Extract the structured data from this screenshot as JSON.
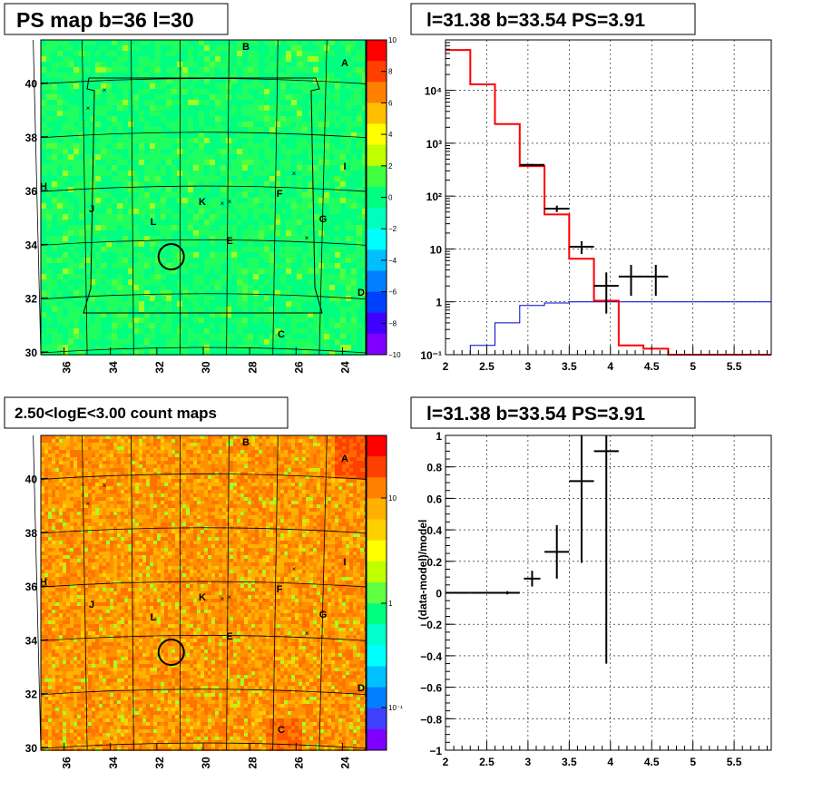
{
  "panels": {
    "top_left": {
      "title": "PS map b=36 l=30"
    },
    "top_right": {
      "title": "l=31.38 b=33.54 PS=3.91"
    },
    "bottom_left": {
      "title": "2.50<logE<3.00 count maps"
    },
    "bottom_right": {
      "title": "l=31.38 b=33.54 PS=3.91"
    }
  },
  "chart_data": [
    {
      "id": "ps_map",
      "type": "heatmap",
      "title": "PS map b=36 l=30",
      "x_ticks": [
        "36",
        "34",
        "32",
        "30",
        "28",
        "26",
        "24"
      ],
      "y_ticks": [
        "30",
        "32",
        "34",
        "36",
        "38",
        "40"
      ],
      "colorbar_ticks": [
        "10",
        "8",
        "6",
        "4",
        "2",
        "0",
        "−2",
        "−4",
        "−6",
        "−8",
        "−10"
      ],
      "colorbar_range": [
        -10,
        10
      ],
      "region_labels": [
        "A",
        "B",
        "C",
        "D",
        "E",
        "F",
        "G",
        "H",
        "I",
        "J",
        "K",
        "L"
      ],
      "marker_symbol": "×",
      "selected_point": {
        "l": 31.38,
        "b": 33.54
      }
    },
    {
      "id": "spectrum",
      "type": "line",
      "title": "l=31.38 b=33.54 PS=3.91",
      "x_ticks": [
        "2",
        "2.5",
        "3",
        "3.5",
        "4",
        "4.5",
        "5",
        "5.5"
      ],
      "xlim": [
        2.0,
        5.95
      ],
      "y_scale": "log",
      "ylim": [
        0.1,
        90000
      ],
      "y_ticks": [
        "10⁻¹",
        "1",
        "10",
        "10²",
        "10³",
        "10⁴"
      ],
      "grid": true,
      "model_edges": [
        2.0,
        2.3,
        2.6,
        2.9,
        3.2,
        3.5,
        3.8,
        4.1,
        4.4,
        4.7,
        5.95
      ],
      "model_values": [
        58000,
        13000,
        2300,
        370,
        45,
        6.5,
        1.05,
        0.15,
        0.13,
        0.1
      ],
      "background_edges": [
        2.0,
        2.3,
        2.6,
        2.9,
        3.2,
        3.5,
        3.8,
        4.1,
        4.4,
        4.7,
        5.95
      ],
      "background_values": [
        0.1,
        0.15,
        0.4,
        0.85,
        0.95,
        1.0,
        1.0,
        1.0,
        1.0,
        1.0
      ],
      "data_points": [
        {
          "x": 3.05,
          "y": 390,
          "xerr": 0.15,
          "ylo": 375,
          "yhi": 405
        },
        {
          "x": 3.35,
          "y": 58,
          "xerr": 0.15,
          "ylo": 50,
          "yhi": 66
        },
        {
          "x": 3.65,
          "y": 11,
          "xerr": 0.15,
          "ylo": 8,
          "yhi": 14
        },
        {
          "x": 3.95,
          "y": 2,
          "xerr": 0.15,
          "ylo": 0.6,
          "yhi": 3.6
        },
        {
          "x": 4.25,
          "y": 3,
          "xerr": 0.15,
          "ylo": 1.3,
          "yhi": 5
        },
        {
          "x": 4.55,
          "y": 3,
          "xerr": 0.15,
          "ylo": 1.3,
          "yhi": 5
        }
      ],
      "model_color": "#ff0000",
      "background_color": "#0000cc"
    },
    {
      "id": "count_map",
      "type": "heatmap",
      "title": "2.50<logE<3.00 count maps",
      "x_ticks": [
        "36",
        "34",
        "32",
        "30",
        "28",
        "26",
        "24"
      ],
      "y_ticks": [
        "30",
        "32",
        "34",
        "36",
        "38",
        "40"
      ],
      "colorbar_scale": "log",
      "colorbar_ticks": [
        "10",
        "1",
        "10⁻¹"
      ],
      "region_labels": [
        "A",
        "B",
        "C",
        "D",
        "E",
        "F",
        "G",
        "H",
        "I",
        "J",
        "K",
        "L"
      ],
      "selected_point": {
        "l": 31.38,
        "b": 33.54
      }
    },
    {
      "id": "residuals",
      "type": "scatter",
      "title": "l=31.38 b=33.54 PS=3.91",
      "ylabel": "(data-model)/model",
      "x_ticks": [
        "2",
        "2.5",
        "3",
        "3.5",
        "4",
        "4.5",
        "5",
        "5.5"
      ],
      "xlim": [
        2.0,
        5.95
      ],
      "ylim": [
        -1,
        1
      ],
      "y_ticks": [
        "1",
        "0.8",
        "0.6",
        "0.4",
        "0.2",
        "0",
        "−0.2",
        "−0.4",
        "−0.6",
        "−0.8",
        "−1"
      ],
      "grid": true,
      "points": [
        {
          "x": 2.15,
          "y": 0.0,
          "xerr": 0.15,
          "yerr": 0.005
        },
        {
          "x": 2.45,
          "y": 0.0,
          "xerr": 0.15,
          "yerr": 0.005
        },
        {
          "x": 2.75,
          "y": 0.0,
          "xerr": 0.15,
          "yerr": 0.01
        },
        {
          "x": 3.05,
          "y": 0.09,
          "xerr": 0.1,
          "yerr": 0.05
        },
        {
          "x": 3.35,
          "y": 0.26,
          "xerr": 0.15,
          "yerr": 0.17
        },
        {
          "x": 3.65,
          "y": 0.71,
          "xerr": 0.15,
          "yerr": 0.52
        },
        {
          "x": 3.95,
          "y": 0.9,
          "xerr": 0.15,
          "yerr": 1.35
        }
      ]
    }
  ]
}
